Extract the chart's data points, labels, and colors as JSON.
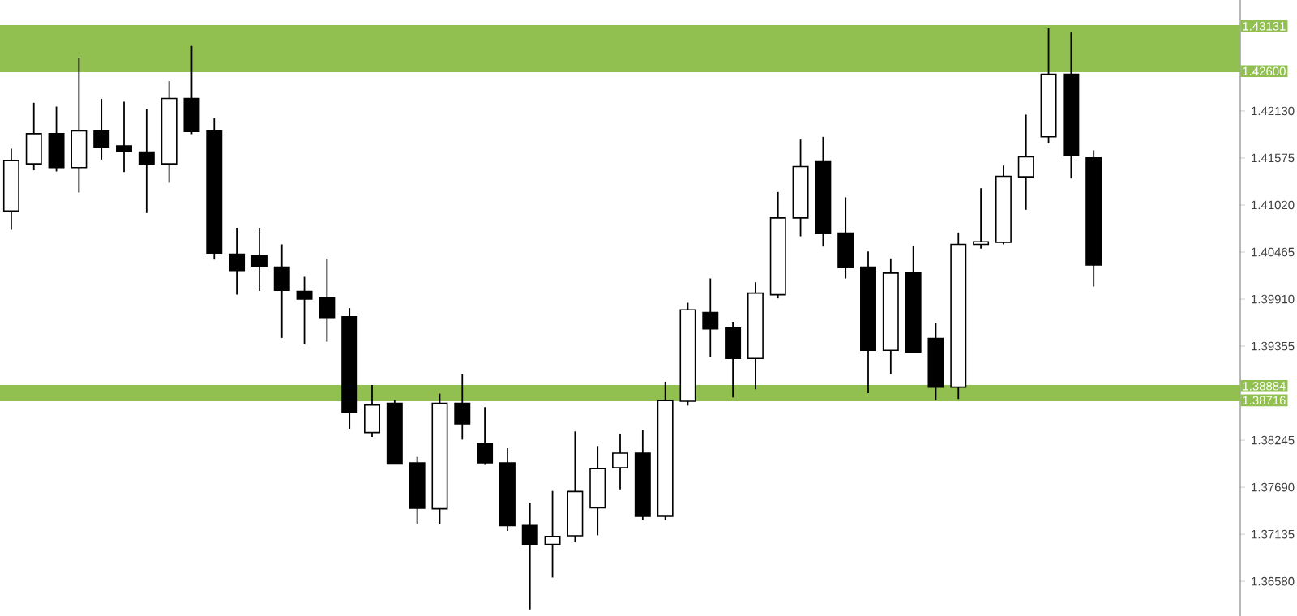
{
  "chart_data": {
    "type": "candlestick",
    "categories": [
      null,
      null,
      null,
      null,
      null,
      null,
      null,
      null,
      null,
      null,
      null,
      null,
      null,
      null,
      null,
      null,
      null,
      null,
      null,
      null,
      null,
      null,
      null,
      null,
      null,
      null,
      null,
      null,
      null,
      null,
      null,
      null,
      null,
      null,
      null,
      null,
      null,
      null,
      null,
      null,
      null,
      null,
      null,
      null,
      null,
      null,
      null,
      null,
      null,
      null,
      null,
      null,
      null,
      null,
      null
    ],
    "ohlc": [
      [
        1.40951,
        1.41685,
        1.40728,
        1.41544
      ],
      [
        1.41506,
        1.42227,
        1.4143,
        1.41863
      ],
      [
        1.41863,
        1.42182,
        1.41417,
        1.41462
      ],
      [
        1.41462,
        1.42757,
        1.41168,
        1.41895
      ],
      [
        1.41895,
        1.42272,
        1.41557,
        1.41704
      ],
      [
        1.41717,
        1.4224,
        1.4141,
        1.41653
      ],
      [
        1.41647,
        1.42151,
        1.40926,
        1.41506
      ],
      [
        1.41506,
        1.42482,
        1.41283,
        1.42278
      ],
      [
        1.42278,
        1.42897,
        1.41857,
        1.41889
      ],
      [
        1.41895,
        1.42048,
        1.40377,
        1.40453
      ],
      [
        1.40441,
        1.40753,
        1.39962,
        1.40249
      ],
      [
        1.40422,
        1.40753,
        1.40007,
        1.403
      ],
      [
        1.40288,
        1.40556,
        1.39452,
        1.40013
      ],
      [
        1.40001,
        1.40173,
        1.39375,
        1.39911
      ],
      [
        1.39924,
        1.4039,
        1.39407,
        1.39694
      ],
      [
        1.39701,
        1.39803,
        1.3838,
        1.38571
      ],
      [
        1.38335,
        1.38897,
        1.38284,
        1.38661
      ],
      [
        1.3868,
        1.38718,
        1.37965,
        1.37965
      ],
      [
        1.37978,
        1.38048,
        1.37251,
        1.37442
      ],
      [
        1.37436,
        1.38795,
        1.37251,
        1.3868
      ],
      [
        1.3868,
        1.39024,
        1.38252,
        1.38437
      ],
      [
        1.38208,
        1.38635,
        1.37953,
        1.37978
      ],
      [
        1.37978,
        1.3815,
        1.37174,
        1.37238
      ],
      [
        1.37238,
        1.37506,
        1.36249,
        1.37015
      ],
      [
        1.37015,
        1.37646,
        1.36625,
        1.3711
      ],
      [
        1.37117,
        1.38348,
        1.3704,
        1.3764
      ],
      [
        1.37448,
        1.38176,
        1.37123,
        1.37908
      ],
      [
        1.37921,
        1.38316,
        1.37665,
        1.38093
      ],
      [
        1.38093,
        1.38361,
        1.37302,
        1.37346
      ],
      [
        1.37346,
        1.38935,
        1.37302,
        1.38712
      ],
      [
        1.38705,
        1.39867,
        1.38654,
        1.39784
      ],
      [
        1.39752,
        1.40154,
        1.39229,
        1.3956
      ],
      [
        1.39567,
        1.39643,
        1.3875,
        1.39209
      ],
      [
        1.39209,
        1.40109,
        1.38846,
        1.39981
      ],
      [
        1.39962,
        1.41174,
        1.39918,
        1.40868
      ],
      [
        1.40868,
        1.41793,
        1.40651,
        1.41474
      ],
      [
        1.41532,
        1.41825,
        1.4053,
        1.40683
      ],
      [
        1.40689,
        1.41111,
        1.40154,
        1.40281
      ],
      [
        1.40288,
        1.40473,
        1.38801,
        1.39305
      ],
      [
        1.39305,
        1.4039,
        1.39024,
        1.40217
      ],
      [
        1.40217,
        1.40536,
        1.39286,
        1.39286
      ],
      [
        1.39445,
        1.39624,
        1.38718,
        1.38871
      ],
      [
        1.38871,
        1.40696,
        1.38731,
        1.40556
      ],
      [
        1.40556,
        1.41219,
        1.40505,
        1.40587
      ],
      [
        1.40581,
        1.41487,
        1.40556,
        1.41359
      ],
      [
        1.41353,
        1.42087,
        1.40964,
        1.41589
      ],
      [
        1.41825,
        1.43107,
        1.41748,
        1.42565
      ],
      [
        1.42565,
        1.43056,
        1.41334,
        1.41602
      ],
      [
        1.41576,
        1.41666,
        1.40058,
        1.40313
      ],
      null,
      null,
      null,
      null,
      null,
      null
    ],
    "ylim": [
      1.3617,
      1.4344
    ],
    "yticks": [
      {
        "value": 1.3658,
        "label": "1.36580"
      },
      {
        "value": 1.37135,
        "label": "1.37135"
      },
      {
        "value": 1.3769,
        "label": "1.37690"
      },
      {
        "value": 1.38245,
        "label": "1.38245"
      },
      {
        "value": 1.39355,
        "label": "1.39355"
      },
      {
        "value": 1.3991,
        "label": "1.39910"
      },
      {
        "value": 1.40465,
        "label": "1.40465"
      },
      {
        "value": 1.4102,
        "label": "1.41020"
      },
      {
        "value": 1.41575,
        "label": "1.41575"
      },
      {
        "value": 1.4213,
        "label": "1.42130"
      }
    ],
    "tick_labels": "y",
    "grid": false,
    "ref_lines": [
      {
        "axis": "y",
        "value": 1.43131,
        "label": "1.43131",
        "color": "#92c050"
      },
      {
        "axis": "y",
        "value": 1.426,
        "label": "1.42600",
        "color": "#92c050"
      },
      {
        "axis": "y",
        "value": 1.38884,
        "label": "1.38884",
        "color": "#92c050"
      },
      {
        "axis": "y",
        "value": 1.38716,
        "label": "1.38716",
        "color": "#92c050"
      }
    ],
    "bands": [
      {
        "axis": "y",
        "from": 1.426,
        "to": 1.43131,
        "color": "#92c050"
      },
      {
        "axis": "y",
        "from": 1.38716,
        "to": 1.38884,
        "color": "#92c050"
      }
    ]
  }
}
